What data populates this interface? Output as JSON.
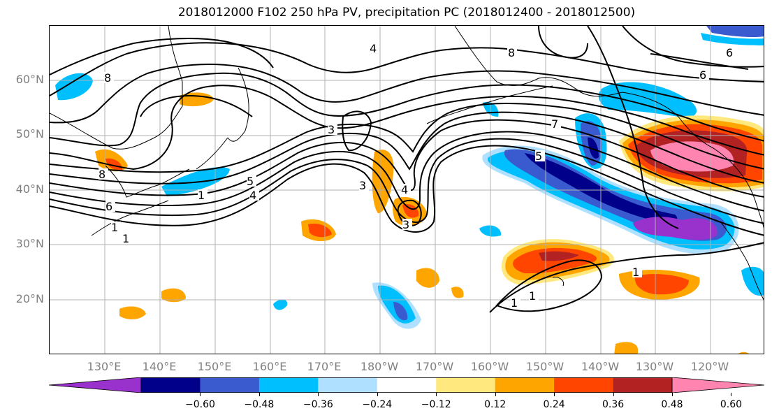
{
  "title": "2018012000 F102 250 hPa PV, precipitation PC (2018012400 - 2018012500)",
  "lat_labels": [
    "60°N",
    "50°N",
    "40°N",
    "30°N",
    "20°N"
  ],
  "lon_labels": [
    "130°E",
    "140°E",
    "150°E",
    "160°E",
    "170°E",
    "180°W",
    "170°W",
    "160°W",
    "150°W",
    "140°W",
    "130°W",
    "120°W"
  ],
  "contour_labels": [
    "8",
    "4",
    "8",
    "6",
    "6",
    "7",
    "3",
    "3",
    "4",
    "3",
    "5",
    "4",
    "1",
    "1",
    "6",
    "8",
    "1",
    "5",
    "1",
    "1",
    "1"
  ],
  "colorbar": {
    "colors": [
      "#9932cc",
      "#00008b",
      "#3a5bcf",
      "#00bfff",
      "#b0e0ff",
      "#ffffff",
      "#ffe97f",
      "#ffa500",
      "#ff4500",
      "#b22222",
      "#ff85b0"
    ],
    "ticks": [
      "−0.60",
      "−0.48",
      "−0.36",
      "−0.24",
      "−0.12",
      "0.12",
      "0.24",
      "0.36",
      "0.48",
      "0.60"
    ]
  },
  "grid": "on"
}
